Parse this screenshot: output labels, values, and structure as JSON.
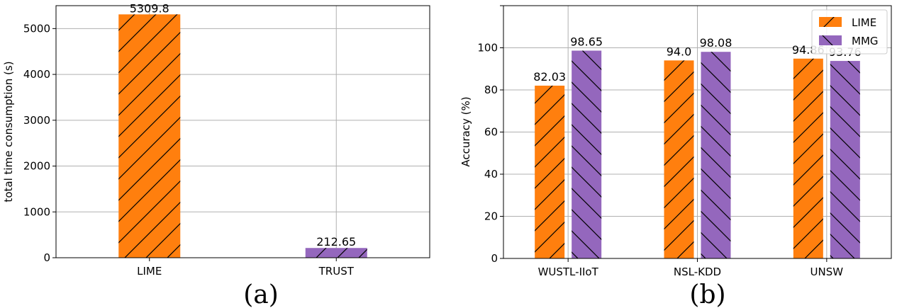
{
  "chart_data": [
    {
      "type": "bar",
      "categories": [
        "LIME",
        "TRUST"
      ],
      "values": [
        5309.8,
        212.65
      ],
      "value_labels": [
        "5309.8",
        "212.65"
      ],
      "colors": [
        "#ff7f0e",
        "#9467bd"
      ],
      "hatch": "forward-diagonal",
      "xlabel": "",
      "ylabel": "total time consumption (s)",
      "ylim": [
        0,
        5500
      ],
      "yticks": [
        0,
        1000,
        2000,
        3000,
        4000,
        5000
      ],
      "grid": true,
      "panel_label": "(a)"
    },
    {
      "type": "bar",
      "categories": [
        "WUSTL-IIoT",
        "NSL-KDD",
        "UNSW"
      ],
      "series": [
        {
          "name": "LIME",
          "values": [
            82.03,
            94.0,
            94.86
          ],
          "value_labels": [
            "82.03",
            "94.0",
            "94.86"
          ],
          "color": "#ff7f0e",
          "hatch": "forward-diagonal"
        },
        {
          "name": "MMG",
          "values": [
            98.65,
            98.08,
            93.76
          ],
          "value_labels": [
            "98.65",
            "98.08",
            "93.76"
          ],
          "color": "#9467bd",
          "hatch": "back-diagonal"
        }
      ],
      "xlabel": "",
      "ylabel": "Accuracy (%)",
      "ylim": [
        0,
        120
      ],
      "yticks": [
        0,
        20,
        40,
        60,
        80,
        100
      ],
      "grid": true,
      "legend": "top-right",
      "panel_label": "(b)"
    }
  ]
}
